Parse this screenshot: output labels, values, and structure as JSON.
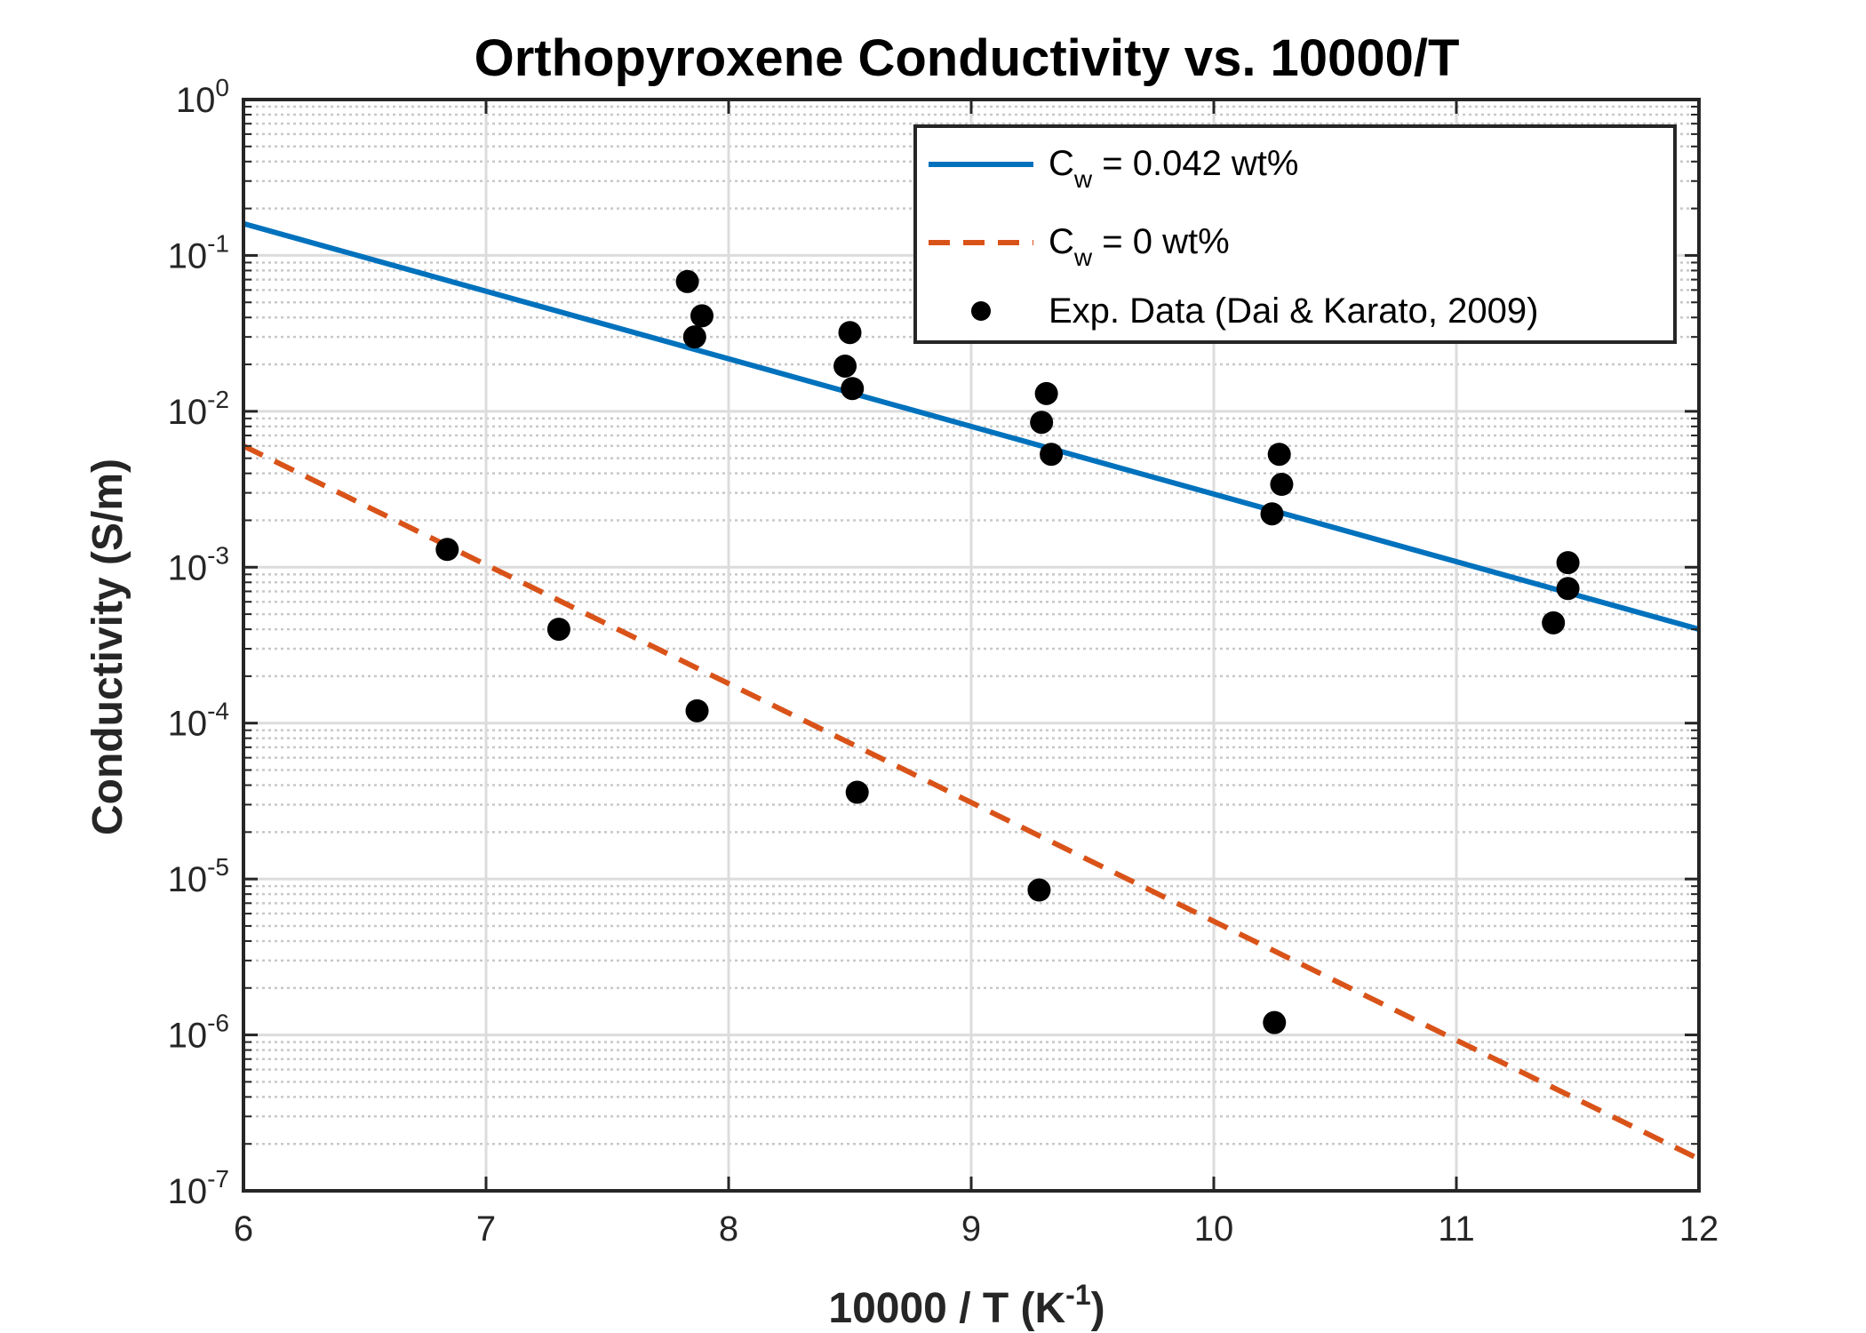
{
  "chart_data": {
    "type": "scatter",
    "title": "Orthopyroxene Conductivity vs. 10000/T",
    "xlabel": "10000 / T (K",
    "xlabel_exp": "-1",
    "xlabel_suffix": ")",
    "ylabel": "Conductivity (S/m)",
    "xlim": [
      6,
      12
    ],
    "ylim": [
      1e-07,
      1
    ],
    "yscale": "log",
    "grid": true,
    "minor_grid": true,
    "legend_position": "top-right",
    "x_ticks": [
      "6",
      "7",
      "8",
      "9",
      "10",
      "11",
      "12"
    ],
    "y_ticks": [
      {
        "base": "10",
        "exp": "0"
      },
      {
        "base": "10",
        "exp": "-1"
      },
      {
        "base": "10",
        "exp": "-2"
      },
      {
        "base": "10",
        "exp": "-3"
      },
      {
        "base": "10",
        "exp": "-4"
      },
      {
        "base": "10",
        "exp": "-5"
      },
      {
        "base": "10",
        "exp": "-6"
      },
      {
        "base": "10",
        "exp": "-7"
      }
    ],
    "series": [
      {
        "legend_prefix": "C",
        "legend_sub": "w",
        "legend_suffix": " = 0.042 wt%",
        "style": "solid-line",
        "color": "#0072BD",
        "x": [
          6,
          12
        ],
        "y": [
          0.16,
          0.0004
        ]
      },
      {
        "legend_prefix": "C",
        "legend_sub": "w",
        "legend_suffix": " = 0 wt%",
        "style": "dashed-line",
        "color": "#D95319",
        "x": [
          6,
          12
        ],
        "y": [
          0.006,
          1.6e-07
        ]
      },
      {
        "name": "Exp. Data (Dai & Karato, 2009)",
        "style": "markers",
        "color": "#000000",
        "x": [
          7.83,
          7.89,
          7.86,
          8.5,
          8.48,
          8.51,
          9.31,
          9.29,
          9.33,
          10.27,
          10.28,
          10.24,
          11.46,
          11.46,
          11.4,
          6.84,
          7.3,
          7.87,
          8.53,
          9.28,
          10.25
        ],
        "y": [
          0.068,
          0.041,
          0.03,
          0.032,
          0.0195,
          0.014,
          0.013,
          0.0085,
          0.0053,
          0.0053,
          0.0034,
          0.0022,
          0.00107,
          0.00073,
          0.00044,
          0.0013,
          0.0004,
          0.00012,
          3.6e-05,
          8.5e-06,
          1.2e-06
        ]
      }
    ]
  }
}
